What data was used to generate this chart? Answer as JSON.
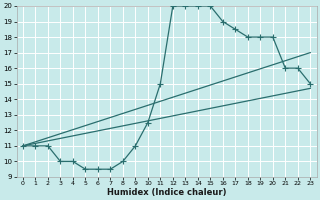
{
  "xlabel": "Humidex (Indice chaleur)",
  "bg_color": "#c8eaea",
  "grid_color": "#b8d8d8",
  "line_color": "#2a6e6e",
  "xlim": [
    -0.5,
    23.5
  ],
  "ylim": [
    9,
    20
  ],
  "xticks": [
    0,
    1,
    2,
    3,
    4,
    5,
    6,
    7,
    8,
    9,
    10,
    11,
    12,
    13,
    14,
    15,
    16,
    17,
    18,
    19,
    20,
    21,
    22,
    23
  ],
  "yticks": [
    9,
    10,
    11,
    12,
    13,
    14,
    15,
    16,
    17,
    18,
    19,
    20
  ],
  "line1_x": [
    0,
    1,
    2,
    3,
    4,
    5,
    6,
    7,
    8,
    9,
    10,
    11,
    12,
    13,
    14,
    15,
    16,
    17,
    18,
    19,
    20,
    21,
    22,
    23
  ],
  "line1_y": [
    11,
    11,
    11,
    10,
    10,
    9.5,
    9.5,
    9.5,
    10,
    11,
    12.5,
    15,
    20,
    20,
    20,
    20,
    19,
    18.5,
    18,
    18,
    18,
    16,
    16,
    15
  ],
  "line2_x": [
    0,
    23
  ],
  "line2_y": [
    11.0,
    17.0
  ],
  "line3_x": [
    0,
    23
  ],
  "line3_y": [
    11.0,
    14.7
  ],
  "marker_size": 2.5
}
